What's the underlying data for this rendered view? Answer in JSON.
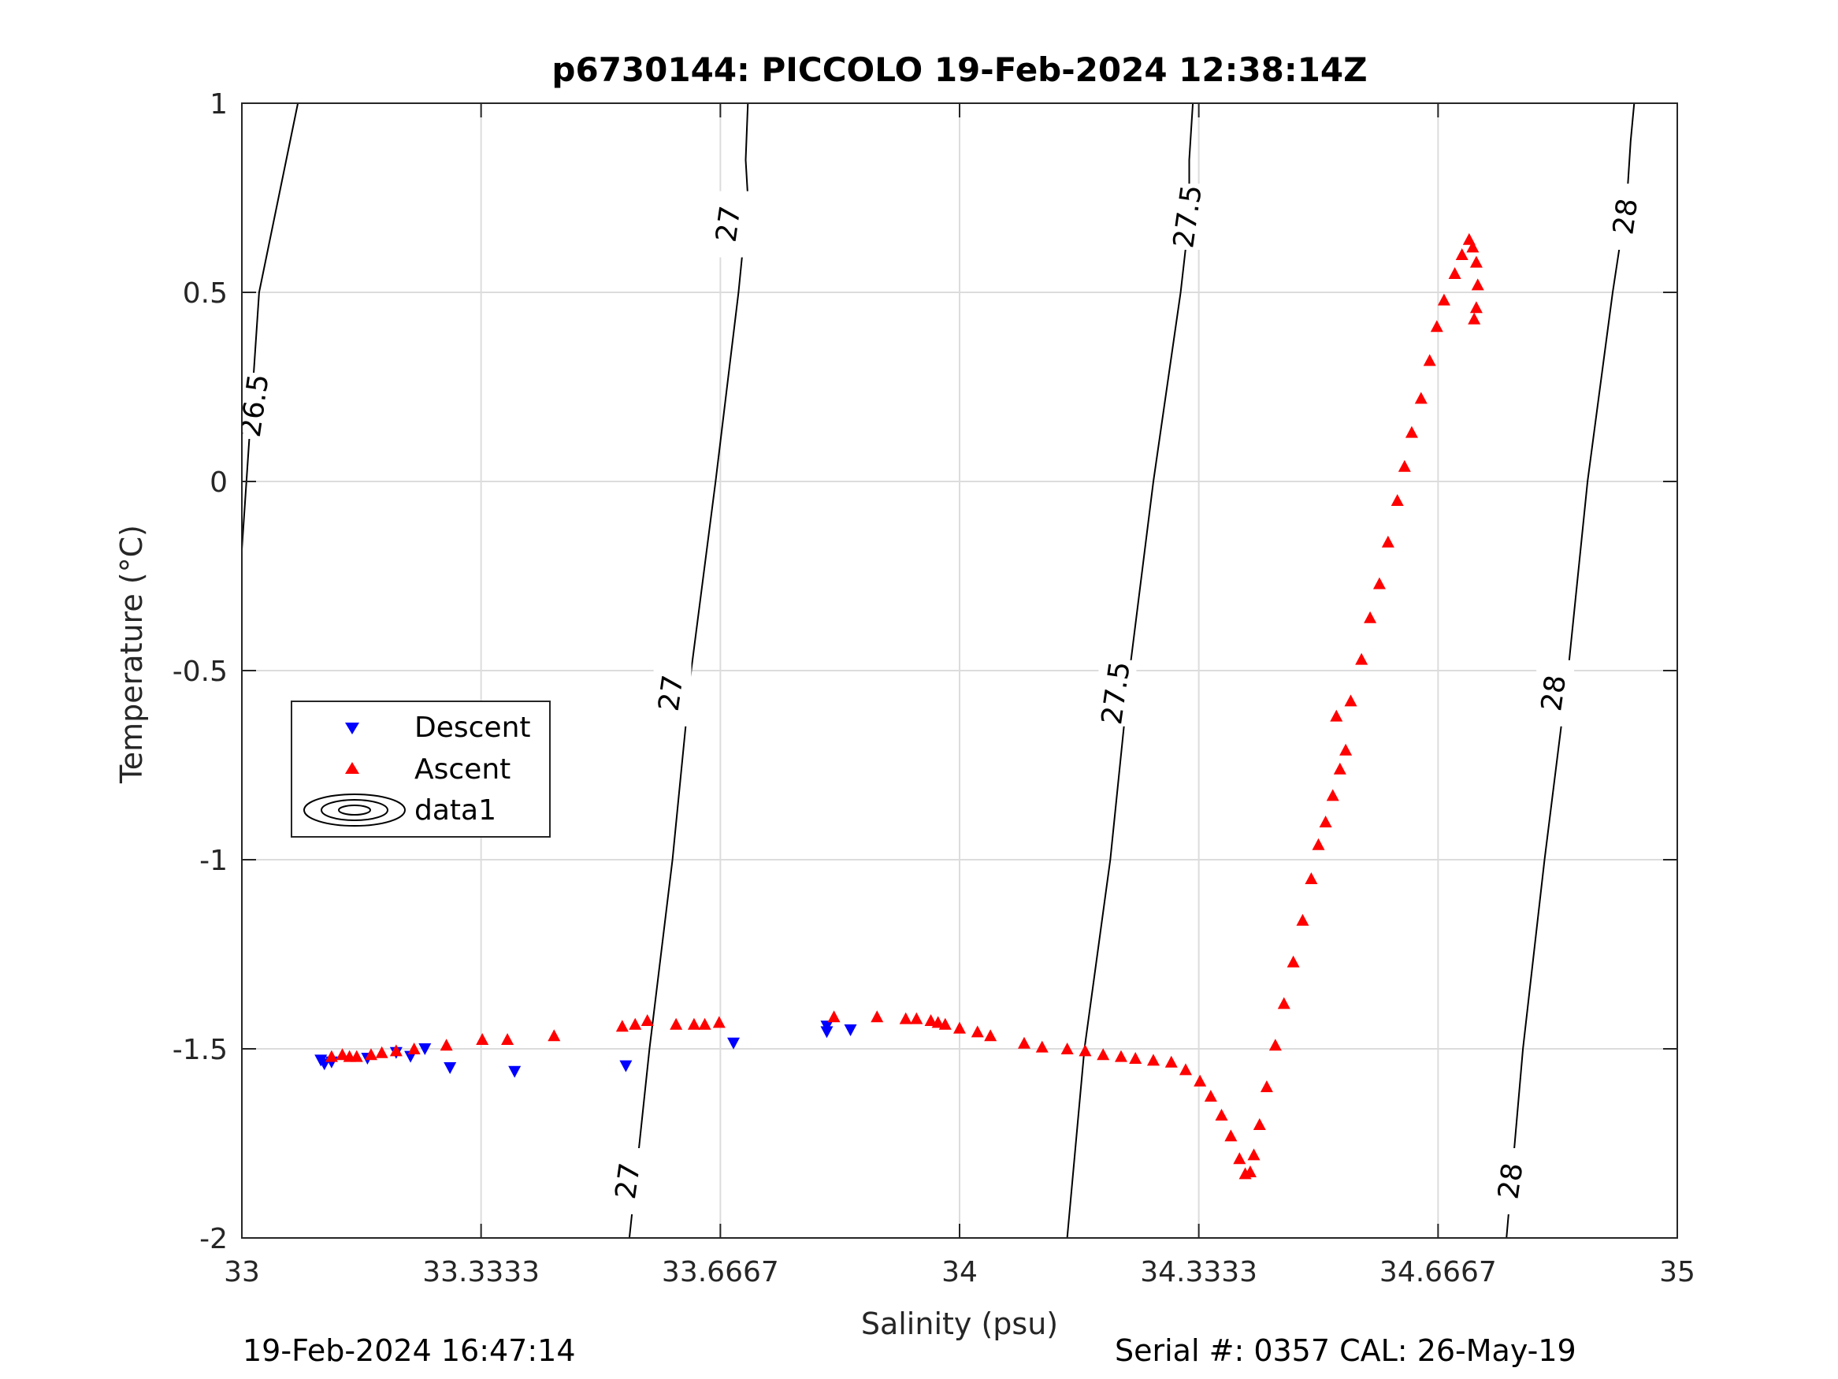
{
  "chart_data": {
    "type": "scatter",
    "title": "p6730144: PICCOLO 19-Feb-2024 12:38:14Z",
    "xlabel": "Salinity (psu)",
    "ylabel": "Temperature (°C)",
    "xlim": [
      33,
      35
    ],
    "ylim": [
      -2,
      1
    ],
    "xticks": [
      33,
      33.3333,
      33.6667,
      34,
      34.3333,
      34.6667,
      35
    ],
    "xtick_labels": [
      "33",
      "33.3333",
      "33.6667",
      "34",
      "34.3333",
      "34.6667",
      "35"
    ],
    "yticks": [
      -2,
      -1.5,
      -1,
      -0.5,
      0,
      0.5,
      1
    ],
    "ytick_labels": [
      "-2",
      "-1.5",
      "-1",
      "-0.5",
      "0",
      "0.5",
      "1"
    ],
    "grid": true,
    "legend_position": "middle-left",
    "series": [
      {
        "name": "Descent",
        "marker": "triangle-down",
        "color": "#0000ff",
        "points": [
          [
            33.11,
            -1.53
          ],
          [
            33.115,
            -1.54
          ],
          [
            33.125,
            -1.535
          ],
          [
            33.175,
            -1.525
          ],
          [
            33.215,
            -1.51
          ],
          [
            33.235,
            -1.52
          ],
          [
            33.255,
            -1.5
          ],
          [
            33.29,
            -1.55
          ],
          [
            33.38,
            -1.56
          ],
          [
            33.535,
            -1.545
          ],
          [
            33.685,
            -1.485
          ],
          [
            33.815,
            -1.44
          ],
          [
            33.815,
            -1.455
          ],
          [
            33.848,
            -1.45
          ]
        ]
      },
      {
        "name": "Ascent",
        "marker": "triangle-up",
        "color": "#ff0000",
        "points": [
          [
            33.125,
            -1.52
          ],
          [
            33.14,
            -1.515
          ],
          [
            33.15,
            -1.52
          ],
          [
            33.16,
            -1.52
          ],
          [
            33.18,
            -1.515
          ],
          [
            33.195,
            -1.51
          ],
          [
            33.215,
            -1.505
          ],
          [
            33.24,
            -1.5
          ],
          [
            33.285,
            -1.49
          ],
          [
            33.335,
            -1.475
          ],
          [
            33.37,
            -1.475
          ],
          [
            33.435,
            -1.465
          ],
          [
            33.53,
            -1.44
          ],
          [
            33.548,
            -1.435
          ],
          [
            33.565,
            -1.425
          ],
          [
            33.605,
            -1.435
          ],
          [
            33.63,
            -1.435
          ],
          [
            33.645,
            -1.435
          ],
          [
            33.665,
            -1.43
          ],
          [
            33.825,
            -1.415
          ],
          [
            33.885,
            -1.415
          ],
          [
            33.925,
            -1.42
          ],
          [
            33.94,
            -1.42
          ],
          [
            33.96,
            -1.425
          ],
          [
            33.97,
            -1.43
          ],
          [
            33.98,
            -1.435
          ],
          [
            34.0,
            -1.445
          ],
          [
            34.025,
            -1.455
          ],
          [
            34.043,
            -1.465
          ],
          [
            34.09,
            -1.485
          ],
          [
            34.115,
            -1.495
          ],
          [
            34.15,
            -1.5
          ],
          [
            34.175,
            -1.505
          ],
          [
            34.2,
            -1.515
          ],
          [
            34.225,
            -1.52
          ],
          [
            34.245,
            -1.525
          ],
          [
            34.27,
            -1.53
          ],
          [
            34.295,
            -1.535
          ],
          [
            34.315,
            -1.555
          ],
          [
            34.335,
            -1.585
          ],
          [
            34.35,
            -1.625
          ],
          [
            34.365,
            -1.675
          ],
          [
            34.378,
            -1.73
          ],
          [
            34.39,
            -1.79
          ],
          [
            34.398,
            -1.83
          ],
          [
            34.405,
            -1.825
          ],
          [
            34.41,
            -1.78
          ],
          [
            34.418,
            -1.7
          ],
          [
            34.428,
            -1.6
          ],
          [
            34.44,
            -1.49
          ],
          [
            34.452,
            -1.38
          ],
          [
            34.465,
            -1.27
          ],
          [
            34.478,
            -1.16
          ],
          [
            34.49,
            -1.05
          ],
          [
            34.5,
            -0.96
          ],
          [
            34.51,
            -0.9
          ],
          [
            34.52,
            -0.83
          ],
          [
            34.53,
            -0.76
          ],
          [
            34.538,
            -0.71
          ],
          [
            34.525,
            -0.62
          ],
          [
            34.545,
            -0.58
          ],
          [
            34.56,
            -0.47
          ],
          [
            34.572,
            -0.36
          ],
          [
            34.585,
            -0.27
          ],
          [
            34.597,
            -0.16
          ],
          [
            34.61,
            -0.05
          ],
          [
            34.62,
            0.04
          ],
          [
            34.63,
            0.13
          ],
          [
            34.643,
            0.22
          ],
          [
            34.655,
            0.32
          ],
          [
            34.665,
            0.41
          ],
          [
            34.675,
            0.48
          ],
          [
            34.69,
            0.55
          ],
          [
            34.7,
            0.6
          ],
          [
            34.71,
            0.64
          ],
          [
            34.715,
            0.62
          ],
          [
            34.72,
            0.58
          ],
          [
            34.722,
            0.52
          ],
          [
            34.72,
            0.46
          ],
          [
            34.717,
            0.43
          ]
        ]
      },
      {
        "name": "data1",
        "marker": "contour",
        "color": "#000000",
        "isopycnals": [
          {
            "level": "26.5",
            "path": [
              [
                33.0,
                -0.18
              ],
              [
                33.024,
                0.5
              ],
              [
                33.078,
                1.0
              ]
            ],
            "labels": [
              [
                33.02,
                0.2
              ]
            ]
          },
          {
            "level": "27",
            "path": [
              [
                33.54,
                -2.0
              ],
              [
                33.568,
                -1.5
              ],
              [
                33.6,
                -1.0
              ],
              [
                33.626,
                -0.5
              ],
              [
                33.66,
                0.0
              ],
              [
                33.692,
                0.5
              ],
              [
                33.705,
                0.75
              ],
              [
                33.702,
                0.85
              ],
              [
                33.705,
                1.0
              ]
            ],
            "labels": [
              [
                33.54,
                -1.85
              ],
              [
                33.6,
                -0.56
              ],
              [
                33.68,
                0.68
              ]
            ]
          },
          {
            "level": "27.5",
            "path": [
              [
                34.15,
                -2.0
              ],
              [
                34.174,
                -1.5
              ],
              [
                34.21,
                -1.0
              ],
              [
                34.237,
                -0.5
              ],
              [
                34.27,
                0.0
              ],
              [
                34.308,
                0.5
              ],
              [
                34.32,
                0.7
              ],
              [
                34.32,
                0.85
              ],
              [
                34.325,
                1.0
              ]
            ],
            "labels": [
              [
                34.22,
                -0.56
              ],
              [
                34.32,
                0.7
              ]
            ]
          },
          {
            "level": "28",
            "path": [
              [
                34.762,
                -2.0
              ],
              [
                34.785,
                -1.5
              ],
              [
                34.815,
                -1.0
              ],
              [
                34.848,
                -0.5
              ],
              [
                34.875,
                0.0
              ],
              [
                34.91,
                0.5
              ],
              [
                34.93,
                0.75
              ],
              [
                34.935,
                0.9
              ],
              [
                34.94,
                1.0
              ]
            ],
            "labels": [
              [
                34.77,
                -1.85
              ],
              [
                34.83,
                -0.56
              ],
              [
                34.93,
                0.7
              ]
            ]
          }
        ]
      }
    ]
  },
  "footer": {
    "timestamp": "19-Feb-2024 16:47:14",
    "serial": "Serial #: 0357  CAL: 26-May-19"
  }
}
